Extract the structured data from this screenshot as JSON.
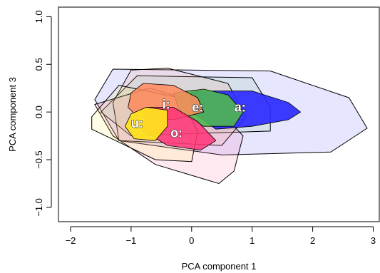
{
  "chart_data": {
    "type": "scatter",
    "xlabel": "PCA component 1",
    "ylabel": "PCA component 3",
    "xlim": [
      -2.2,
      3.1
    ],
    "ylim": [
      -1.15,
      1.1
    ],
    "x_ticks": [
      -2,
      -1,
      0,
      1,
      2,
      3
    ],
    "x_tick_labels": [
      "−2",
      "−1",
      "0",
      "1",
      "2",
      "3"
    ],
    "y_ticks": [
      -1.0,
      -0.5,
      0.0,
      0.5,
      1.0
    ],
    "y_tick_labels": [
      "−1.0",
      "−0.5",
      "0.0",
      "0.5",
      "1.0"
    ],
    "grid": false,
    "legend": "none",
    "outer_hulls": [
      {
        "vowel": "a:",
        "fill": "#3333ff",
        "opacity": 0.12,
        "points": [
          [
            -1.6,
            0.13
          ],
          [
            -1.3,
            0.45
          ],
          [
            1.3,
            0.43
          ],
          [
            2.6,
            0.15
          ],
          [
            2.9,
            -0.17
          ],
          [
            2.3,
            -0.42
          ],
          [
            0.5,
            -0.45
          ],
          [
            -1.2,
            -0.3
          ]
        ]
      },
      {
        "vowel": "e:",
        "fill": "#4cae4c",
        "opacity": 0.1,
        "points": [
          [
            -1.5,
            0.0
          ],
          [
            -0.9,
            0.38
          ],
          [
            1.0,
            0.36
          ],
          [
            1.3,
            0.05
          ],
          [
            1.3,
            -0.2
          ],
          [
            0.3,
            -0.22
          ],
          [
            -1.0,
            -0.25
          ]
        ]
      },
      {
        "vowel": "i:",
        "fill": "#ff9966",
        "opacity": 0.14,
        "points": [
          [
            -1.3,
            0.1
          ],
          [
            -1.0,
            0.44
          ],
          [
            -0.4,
            0.46
          ],
          [
            0.6,
            0.3
          ],
          [
            0.9,
            -0.05
          ],
          [
            0.5,
            -0.35
          ],
          [
            -1.2,
            -0.3
          ]
        ]
      },
      {
        "vowel": "o:",
        "fill": "#ff6699",
        "opacity": 0.14,
        "points": [
          [
            -1.6,
            0.08
          ],
          [
            -0.7,
            0.25
          ],
          [
            0.4,
            0.05
          ],
          [
            0.85,
            -0.25
          ],
          [
            0.7,
            -0.62
          ],
          [
            0.45,
            -0.75
          ],
          [
            -0.6,
            -0.55
          ],
          [
            -1.3,
            -0.25
          ]
        ]
      },
      {
        "vowel": "u:",
        "fill": "#ffee44",
        "opacity": 0.14,
        "points": [
          [
            -1.65,
            -0.05
          ],
          [
            -1.2,
            0.28
          ],
          [
            -0.2,
            0.15
          ],
          [
            0.1,
            -0.2
          ],
          [
            0.0,
            -0.52
          ],
          [
            -0.6,
            -0.5
          ],
          [
            -1.65,
            -0.18
          ]
        ]
      }
    ],
    "inner_hulls": [
      {
        "vowel": "a:",
        "fill": "#2b2bff",
        "opacity": 0.92,
        "points": [
          [
            0.0,
            0.22
          ],
          [
            1.0,
            0.22
          ],
          [
            1.6,
            0.1
          ],
          [
            1.8,
            0.0
          ],
          [
            1.6,
            -0.08
          ],
          [
            1.0,
            -0.15
          ],
          [
            0.4,
            -0.18
          ],
          [
            0.0,
            0.0
          ]
        ]
      },
      {
        "vowel": "e:",
        "fill": "#4fb84f",
        "opacity": 0.9,
        "points": [
          [
            -0.3,
            0.2
          ],
          [
            0.2,
            0.24
          ],
          [
            0.6,
            0.18
          ],
          [
            0.85,
            0.0
          ],
          [
            0.7,
            -0.15
          ],
          [
            0.2,
            -0.15
          ],
          [
            -0.2,
            0.0
          ]
        ]
      },
      {
        "vowel": "i:",
        "fill": "#ff8a5c",
        "opacity": 0.85,
        "points": [
          [
            -1.0,
            0.2
          ],
          [
            -0.8,
            0.3
          ],
          [
            -0.3,
            0.28
          ],
          [
            0.1,
            0.15
          ],
          [
            0.2,
            0.0
          ],
          [
            -0.3,
            -0.08
          ],
          [
            -0.9,
            -0.05
          ],
          [
            -1.05,
            0.05
          ]
        ]
      },
      {
        "vowel": "o:",
        "fill": "#ff3377",
        "opacity": 0.85,
        "points": [
          [
            -0.75,
            0.05
          ],
          [
            -0.3,
            0.05
          ],
          [
            0.1,
            -0.1
          ],
          [
            0.4,
            -0.3
          ],
          [
            0.15,
            -0.4
          ],
          [
            -0.4,
            -0.35
          ],
          [
            -0.8,
            -0.2
          ]
        ]
      },
      {
        "vowel": "u:",
        "fill": "#ffe020",
        "opacity": 0.95,
        "points": [
          [
            -1.0,
            -0.02
          ],
          [
            -0.75,
            0.05
          ],
          [
            -0.4,
            0.02
          ],
          [
            -0.4,
            -0.15
          ],
          [
            -0.6,
            -0.3
          ],
          [
            -0.95,
            -0.28
          ],
          [
            -1.1,
            -0.15
          ]
        ]
      }
    ],
    "vowel_labels": [
      {
        "text": "a:",
        "x": 0.8,
        "y": 0.05
      },
      {
        "text": "e:",
        "x": 0.1,
        "y": 0.05
      },
      {
        "text": "i:",
        "x": -0.42,
        "y": 0.08
      },
      {
        "text": "o:",
        "x": -0.25,
        "y": -0.22
      },
      {
        "text": "u:",
        "x": -0.9,
        "y": -0.12
      }
    ]
  }
}
